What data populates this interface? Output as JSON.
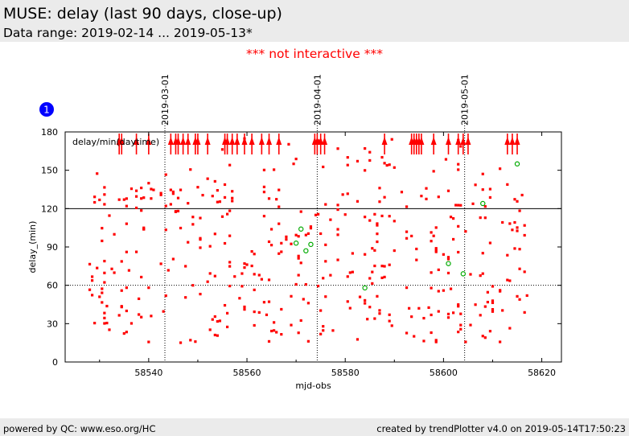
{
  "header": {
    "title": "MUSE: delay (last 90 days, close-up)",
    "subtitle": "Data range: 2019-02-14 ... 2019-05-13*"
  },
  "notice": "*** not interactive ***",
  "footer": {
    "left": "powered by QC: www.eso.org/HC",
    "right": "created by trendPlotter v4.0 on 2019-05-14T17:50:23"
  },
  "colors": {
    "points": "#ff0000",
    "highlight": "#00aa00",
    "badge": "#0000ff",
    "header_bg": "#ebebeb"
  },
  "chart_data": {
    "type": "scatter",
    "badge": "1",
    "inner_label": "delay/min(daytime)",
    "xlabel": "mjd-obs",
    "ylabel": "delay_(min)",
    "xlim": [
      58523,
      58624
    ],
    "ylim": [
      0,
      180
    ],
    "xticks": [
      58540,
      58560,
      58580,
      58600,
      58620
    ],
    "yticks": [
      0,
      30,
      60,
      90,
      120,
      150,
      180
    ],
    "hlines": [
      {
        "y": 120,
        "style": "solid"
      },
      {
        "y": 60,
        "style": "dotted"
      }
    ],
    "date_markers": [
      {
        "x": 58543.3,
        "label": "2019-03-01"
      },
      {
        "x": 58574.3,
        "label": "2019-04-01"
      },
      {
        "x": 58604.3,
        "label": "2019-05-01"
      }
    ],
    "highlight_points": [
      {
        "x": 58570,
        "y": 93
      },
      {
        "x": 58571,
        "y": 104
      },
      {
        "x": 58572,
        "y": 87
      },
      {
        "x": 58573,
        "y": 92
      },
      {
        "x": 58584,
        "y": 58
      },
      {
        "x": 58601,
        "y": 77
      },
      {
        "x": 58604,
        "y": 69
      },
      {
        "x": 58608,
        "y": 124
      },
      {
        "x": 58615,
        "y": 155
      }
    ],
    "overflow_x": [
      58534,
      58534.5,
      58537.5,
      58540,
      58544.5,
      58545.5,
      58546,
      58547,
      58548,
      58549.5,
      58550,
      58552,
      58555.5,
      58556,
      58557,
      58558,
      58559.5,
      58561,
      58563,
      58564.5,
      58566.5,
      58573.8,
      58574.3,
      58575,
      58575.8,
      58588,
      58593.5,
      58594,
      58594.5,
      58595,
      58595.5,
      58598,
      58601,
      58603,
      58604,
      58605,
      58613,
      58614,
      58615
    ],
    "point_density": 460
  }
}
